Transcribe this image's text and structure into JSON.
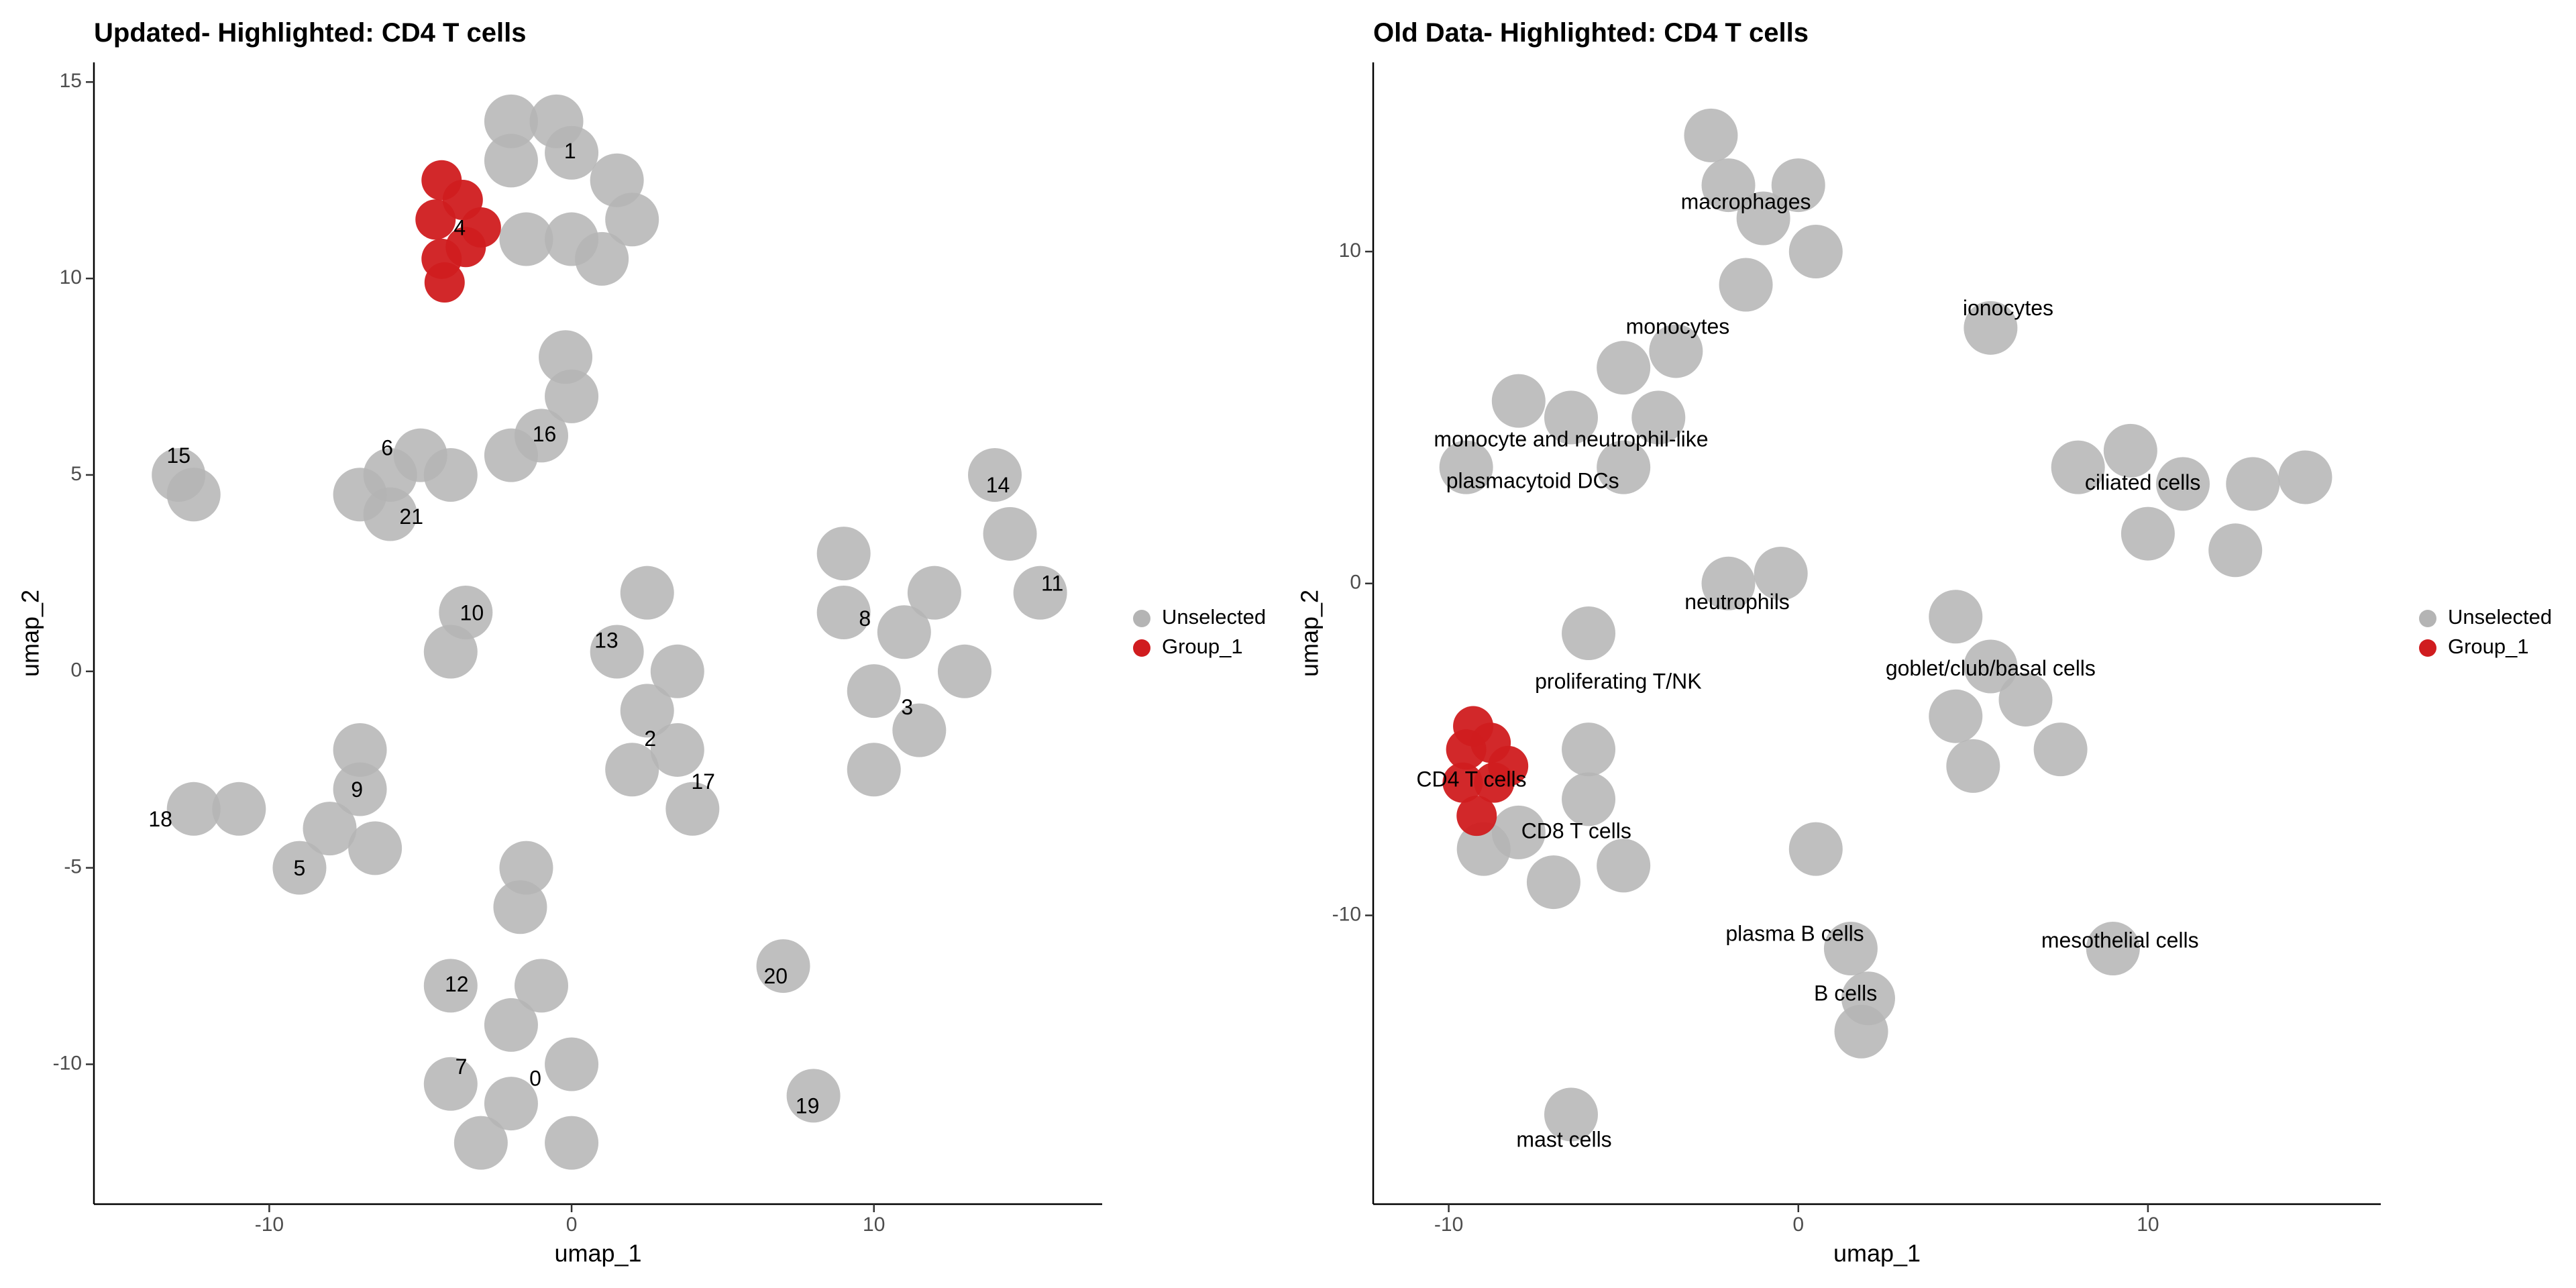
{
  "chart_data": [
    {
      "type": "scatter",
      "title": "Updated- Highlighted: CD4 T cells",
      "x_label": "umap_1",
      "y_label": "umap_2",
      "xlim": [
        -15.8,
        17.55
      ],
      "ylim": [
        -13.56,
        15.5
      ],
      "xticks": [
        -10,
        0,
        10
      ],
      "yticks": [
        -10,
        -5,
        0,
        5,
        10,
        15
      ],
      "legend": "right",
      "series": [
        {
          "name": "Unselected",
          "color": "#b4b4b4",
          "x": [
            -2,
            0,
            1.5,
            0,
            -1.5,
            1,
            -2,
            -0.5,
            2,
            -0.2,
            0,
            -6,
            -7,
            -5,
            -4,
            -6,
            -2,
            -1,
            -13,
            -12.5,
            14,
            14.5,
            15.5,
            9,
            11,
            10,
            11.5,
            12,
            9,
            10,
            13,
            -3.5,
            -4,
            1.5,
            2.5,
            3.5,
            4,
            2.5,
            2,
            3.5,
            -7,
            -8,
            -6.5,
            -9,
            -7,
            -12.5,
            -11,
            -4,
            -2,
            -4,
            -2,
            0,
            -3,
            0,
            -1,
            -1.5,
            -1.7,
            7,
            8
          ],
          "y": [
            13,
            13.2,
            12.5,
            11,
            11,
            10.5,
            14,
            14,
            11.5,
            8,
            7,
            5,
            4.5,
            5.5,
            5,
            4,
            5.5,
            6,
            5,
            4.5,
            5,
            3.5,
            2,
            1.5,
            1,
            -0.5,
            -1.5,
            2,
            3,
            -2.5,
            0,
            1.5,
            0.5,
            0.5,
            -1,
            -2,
            -3.5,
            2,
            -2.5,
            0,
            -3,
            -4,
            -4.5,
            -5,
            -2,
            -3.5,
            -3.5,
            -8,
            -9,
            -10.5,
            -11,
            -10,
            -12,
            -12,
            -8,
            -5,
            -6,
            -7.5,
            -10.8
          ]
        },
        {
          "name": "Group_1",
          "color": "#d01c1f",
          "x": [
            -4.3,
            -4.5,
            -4.3,
            -3.6,
            -3.5,
            -4.2,
            -3
          ],
          "y": [
            12.5,
            11.5,
            10.5,
            12,
            10.8,
            9.9,
            11.3
          ]
        }
      ],
      "annotations": [
        {
          "text": "1",
          "x": -0.05,
          "y": 13.2
        },
        {
          "text": "4",
          "x": -3.7,
          "y": 11.25
        },
        {
          "text": "16",
          "x": -0.9,
          "y": 6.0
        },
        {
          "text": "6",
          "x": -6.1,
          "y": 5.65
        },
        {
          "text": "15",
          "x": -13.0,
          "y": 5.45
        },
        {
          "text": "21",
          "x": -5.3,
          "y": 3.9
        },
        {
          "text": "14",
          "x": 14.1,
          "y": 4.7
        },
        {
          "text": "11",
          "x": 15.9,
          "y": 2.2
        },
        {
          "text": "10",
          "x": -3.3,
          "y": 1.45
        },
        {
          "text": "8",
          "x": 9.7,
          "y": 1.3
        },
        {
          "text": "13",
          "x": 1.15,
          "y": 0.75
        },
        {
          "text": "3",
          "x": 11.1,
          "y": -0.95
        },
        {
          "text": "2",
          "x": 2.6,
          "y": -1.75
        },
        {
          "text": "9",
          "x": -7.1,
          "y": -3.05
        },
        {
          "text": "17",
          "x": 4.35,
          "y": -2.85
        },
        {
          "text": "18",
          "x": -13.6,
          "y": -3.8
        },
        {
          "text": "5",
          "x": -9.0,
          "y": -5.05
        },
        {
          "text": "12",
          "x": -3.8,
          "y": -8.0
        },
        {
          "text": "20",
          "x": 6.75,
          "y": -7.8
        },
        {
          "text": "7",
          "x": -3.65,
          "y": -10.1
        },
        {
          "text": "0",
          "x": -1.2,
          "y": -10.4
        },
        {
          "text": "19",
          "x": 7.8,
          "y": -11.1
        }
      ]
    },
    {
      "type": "scatter",
      "title": "Old Data- Highlighted: CD4 T cells",
      "x_label": "umap_1",
      "y_label": "umap_2",
      "xlim": [
        -12.16,
        16.66
      ],
      "ylim": [
        -18.7,
        15.7
      ],
      "xticks": [
        -10,
        0,
        10
      ],
      "yticks": [
        -10,
        0,
        10
      ],
      "legend": "right",
      "series": [
        {
          "name": "Unselected",
          "color": "#b4b4b4",
          "x": [
            -2,
            -1,
            -2.5,
            0.5,
            -1.5,
            0,
            -5,
            -6.5,
            -4,
            -8,
            -9.5,
            -5,
            -3.5,
            5.5,
            8,
            9.5,
            11,
            13,
            10,
            14.5,
            12.5,
            -2,
            -0.5,
            -6,
            4.5,
            5.5,
            4.5,
            6.5,
            5,
            7.5,
            -8,
            -6,
            -7,
            -5,
            -9,
            -6,
            1.5,
            2,
            1.8,
            0.5,
            9,
            -6.5
          ],
          "y": [
            12,
            11,
            13.5,
            10,
            9,
            12,
            6.5,
            5,
            5,
            5.5,
            3.5,
            3.5,
            7,
            7.7,
            3.5,
            4,
            3,
            3,
            1.5,
            3.2,
            1,
            0,
            0.3,
            -1.5,
            -1,
            -2.5,
            -4,
            -3.5,
            -5.5,
            -5,
            -7.5,
            -6.5,
            -9,
            -8.5,
            -8,
            -5,
            -11,
            -12.5,
            -13.5,
            -8,
            -11,
            -16
          ]
        },
        {
          "name": "Group_1",
          "color": "#d01c1f",
          "x": [
            -9.5,
            -8.8,
            -9.6,
            -8.7,
            -9.2,
            -8.3,
            -9.3
          ],
          "y": [
            -5,
            -4.8,
            -6,
            -6,
            -7,
            -5.5,
            -4.3
          ]
        }
      ],
      "annotations": [
        {
          "text": "macrophages",
          "x": -1.5,
          "y": 11.45
        },
        {
          "text": "ionocytes",
          "x": 6.0,
          "y": 8.25
        },
        {
          "text": "monocytes",
          "x": -3.45,
          "y": 7.7
        },
        {
          "text": "monocyte and neutrophil-like",
          "x": -6.5,
          "y": 4.3
        },
        {
          "text": "plasmacytoid DCs",
          "x": -7.6,
          "y": 3.05
        },
        {
          "text": "ciliated cells",
          "x": 9.85,
          "y": 3.0
        },
        {
          "text": "neutrophils",
          "x": -1.75,
          "y": -0.6
        },
        {
          "text": "goblet/club/basal cells",
          "x": 5.5,
          "y": -2.6
        },
        {
          "text": "proliferating T/NK",
          "x": -5.15,
          "y": -3.0
        },
        {
          "text": "CD4 T cells",
          "x": -9.35,
          "y": -5.95
        },
        {
          "text": "CD8 T cells",
          "x": -6.35,
          "y": -7.5
        },
        {
          "text": "plasma B cells",
          "x": -0.1,
          "y": -10.6
        },
        {
          "text": "mesothelial cells",
          "x": 9.2,
          "y": -10.8
        },
        {
          "text": "B cells",
          "x": 1.35,
          "y": -12.4
        },
        {
          "text": "mast cells",
          "x": -6.7,
          "y": -16.8
        }
      ]
    }
  ]
}
